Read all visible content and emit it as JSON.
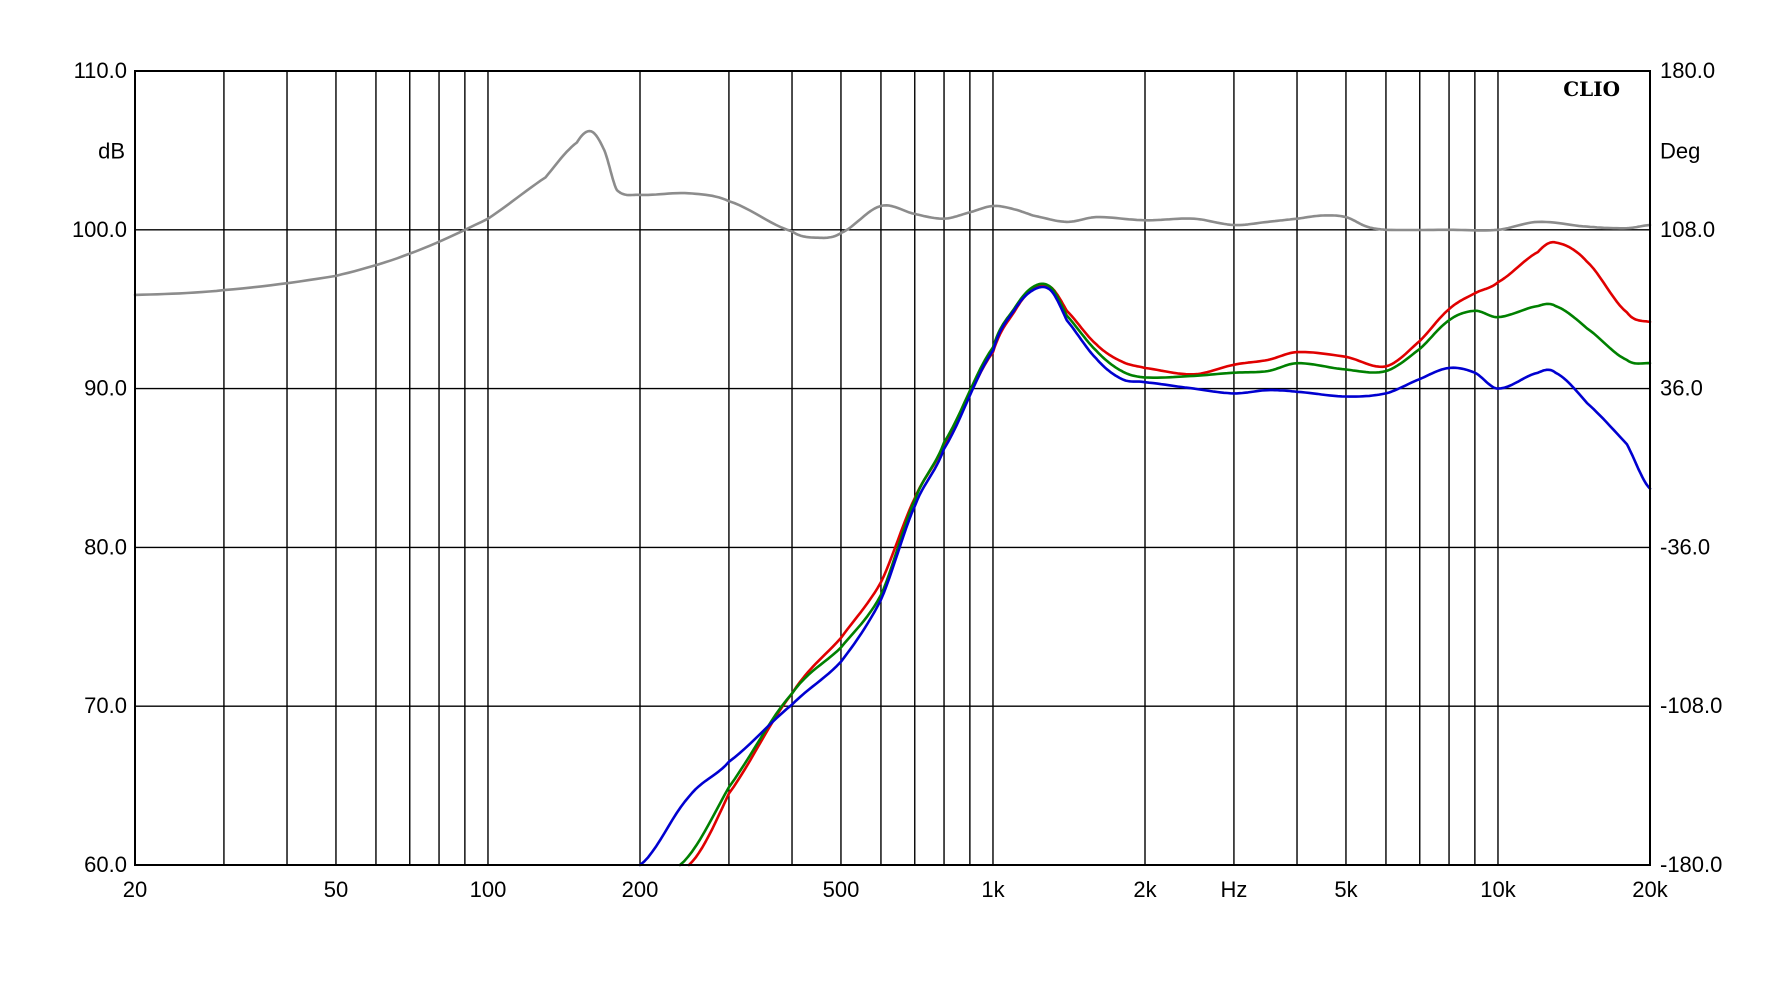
{
  "chart_data": {
    "type": "line",
    "brand": "CLIO",
    "xlabel": "Hz",
    "ylabel": "dB",
    "ylabel_right": "Deg",
    "x_scale": "log",
    "xlim": [
      20,
      20000
    ],
    "ylim": [
      60,
      110
    ],
    "ylim_right": [
      -180,
      180
    ],
    "grid": true,
    "x_major_ticks": [
      20,
      30,
      40,
      50,
      60,
      70,
      80,
      90,
      100,
      200,
      300,
      400,
      500,
      600,
      700,
      800,
      900,
      1000,
      2000,
      3000,
      4000,
      5000,
      6000,
      7000,
      8000,
      9000,
      10000,
      20000
    ],
    "x_tick_labels": [
      {
        "x": 20,
        "label": "20"
      },
      {
        "x": 50,
        "label": "50"
      },
      {
        "x": 100,
        "label": "100"
      },
      {
        "x": 200,
        "label": "200"
      },
      {
        "x": 500,
        "label": "500"
      },
      {
        "x": 1000,
        "label": "1k"
      },
      {
        "x": 2000,
        "label": "2k"
      },
      {
        "x": 3000,
        "label": "Hz"
      },
      {
        "x": 5000,
        "label": "5k"
      },
      {
        "x": 10000,
        "label": "10k"
      },
      {
        "x": 20000,
        "label": "20k"
      }
    ],
    "y_tick_labels": [
      "60.0",
      "70.0",
      "80.0",
      "90.0",
      "100.0",
      "110.0"
    ],
    "y_ticks": [
      60,
      70,
      80,
      90,
      100,
      110
    ],
    "y_right_tick_labels": [
      "-180.0",
      "-108.0",
      "-36.0",
      "36.0",
      "108.0",
      "180.0"
    ],
    "y_right_ticks": [
      -180,
      -108,
      -36,
      36,
      108,
      180
    ],
    "series": [
      {
        "color": "#8c8c8c",
        "x": [
          20,
          30,
          50,
          70,
          100,
          130,
          150,
          160,
          170,
          180,
          200,
          250,
          300,
          400,
          450,
          500,
          600,
          700,
          800,
          900,
          1000,
          1100,
          1200,
          1400,
          1600,
          2000,
          2500,
          3000,
          3500,
          4000,
          4500,
          5000,
          5500,
          6000,
          8000,
          10000,
          12000,
          15000,
          18000,
          20000
        ],
        "values": [
          95.9,
          96.2,
          97.1,
          98.5,
          100.7,
          103.3,
          105.5,
          106.2,
          105.0,
          102.5,
          102.2,
          102.3,
          101.8,
          99.9,
          99.5,
          99.8,
          101.5,
          101.0,
          100.7,
          101.1,
          101.5,
          101.3,
          100.9,
          100.5,
          100.8,
          100.6,
          100.7,
          100.3,
          100.5,
          100.7,
          100.9,
          100.8,
          100.2,
          100.0,
          100.0,
          100.0,
          100.5,
          100.2,
          100.1,
          100.3
        ]
      },
      {
        "color": "#e00000",
        "x": [
          250,
          300,
          400,
          500,
          600,
          700,
          800,
          1000,
          1100,
          1200,
          1300,
          1400,
          1600,
          1800,
          2000,
          2500,
          3000,
          3500,
          4000,
          5000,
          6000,
          7000,
          8000,
          9000,
          10000,
          12000,
          13000,
          15000,
          18000,
          20000
        ],
        "values": [
          60.0,
          64.5,
          70.8,
          74.3,
          77.8,
          83.1,
          86.5,
          92.3,
          94.8,
          96.3,
          96.4,
          94.9,
          92.8,
          91.7,
          91.3,
          90.9,
          91.5,
          91.8,
          92.3,
          92.0,
          91.4,
          93.0,
          95.0,
          96.0,
          96.7,
          98.6,
          99.2,
          98.0,
          94.8,
          94.2
        ]
      },
      {
        "color": "#008000",
        "x": [
          240,
          300,
          400,
          500,
          600,
          700,
          800,
          1000,
          1100,
          1200,
          1300,
          1400,
          1600,
          1800,
          2000,
          2500,
          3000,
          3500,
          4000,
          5000,
          6000,
          7000,
          8000,
          9000,
          10000,
          12000,
          13000,
          15000,
          18000,
          20000
        ],
        "values": [
          60.0,
          64.9,
          70.8,
          73.7,
          77.0,
          83.0,
          86.6,
          92.6,
          95.0,
          96.4,
          96.4,
          94.6,
          92.4,
          91.1,
          90.7,
          90.8,
          91.0,
          91.1,
          91.6,
          91.2,
          91.1,
          92.5,
          94.3,
          94.9,
          94.5,
          95.2,
          95.2,
          93.8,
          91.8,
          91.6
        ]
      },
      {
        "color": "#0000d0",
        "x": [
          200,
          250,
          300,
          400,
          500,
          600,
          700,
          800,
          1000,
          1100,
          1200,
          1300,
          1400,
          1600,
          1800,
          2000,
          2500,
          3000,
          3500,
          4000,
          5000,
          6000,
          7000,
          8000,
          9000,
          10000,
          12000,
          13000,
          15000,
          18000,
          20000
        ],
        "values": [
          60.0,
          64.3,
          66.5,
          70.1,
          72.8,
          76.7,
          82.6,
          86.2,
          92.4,
          94.9,
          96.2,
          96.2,
          94.3,
          91.9,
          90.6,
          90.4,
          90.0,
          89.7,
          89.9,
          89.8,
          89.5,
          89.7,
          90.6,
          91.3,
          91.0,
          90.0,
          91.0,
          91.0,
          89.1,
          86.5,
          83.7
        ]
      }
    ]
  }
}
